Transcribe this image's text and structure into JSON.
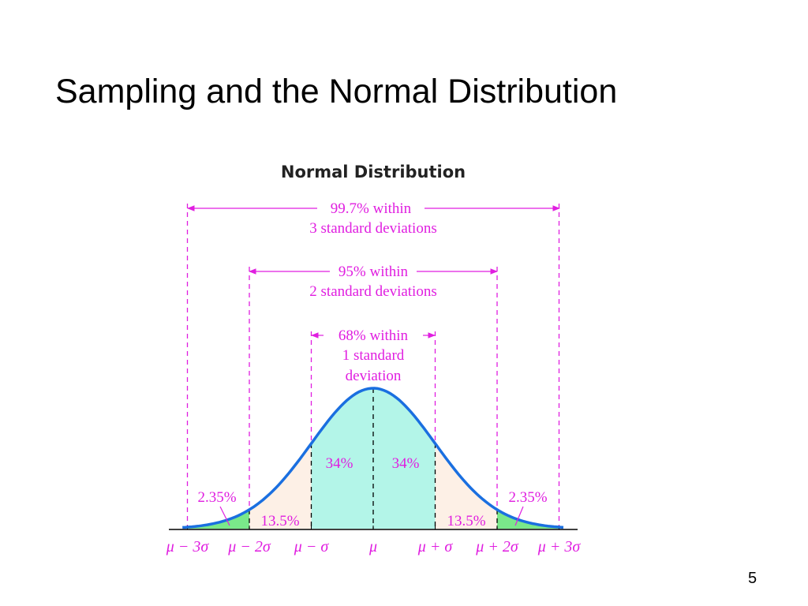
{
  "slide": {
    "title": "Sampling and the Normal Distribution",
    "page_number": "5"
  },
  "diagram": {
    "title": "Normal Distribution",
    "ranges": [
      {
        "line1": "99.7% within",
        "line2": "3 standard deviations"
      },
      {
        "line1": "95% within",
        "line2": "2 standard deviations"
      },
      {
        "line1": "68% within",
        "line2": "1 standard",
        "line3": "deviation"
      }
    ],
    "region_labels": {
      "inner_left": "34%",
      "inner_right": "34%",
      "mid_left": "13.5%",
      "mid_right": "13.5%",
      "tail_left": "2.35%",
      "tail_right": "2.35%"
    },
    "axis_labels": [
      "μ − 3σ",
      "μ − 2σ",
      "μ − σ",
      "μ",
      "μ + σ",
      "μ + 2σ",
      "μ + 3σ"
    ],
    "colors": {
      "curve": "#1a6fe0",
      "inner": "#b3f5e8",
      "mid": "#fdf0e6",
      "tail": "#7ae88a",
      "annotation": "#e01ee0"
    }
  }
}
